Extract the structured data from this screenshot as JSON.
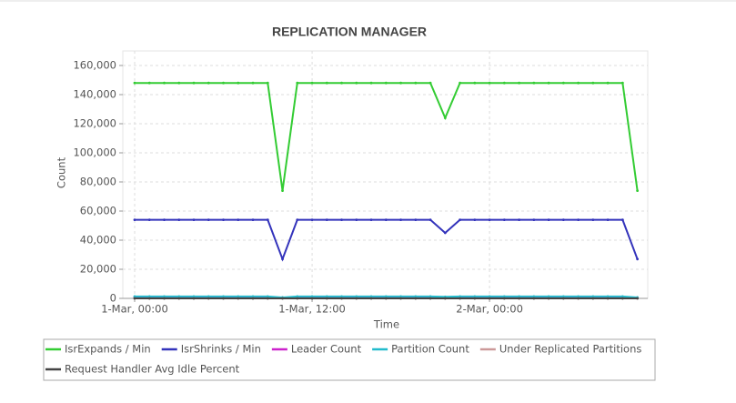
{
  "chart_data": {
    "type": "line",
    "title": "REPLICATION MANAGER",
    "x_label": "Time",
    "y_label": "Count",
    "x": [
      0,
      1,
      2,
      3,
      4,
      5,
      6,
      7,
      8,
      9,
      10,
      11,
      12,
      13,
      14,
      15,
      16,
      17,
      18,
      19,
      20,
      21,
      22,
      23,
      24,
      25,
      26,
      27,
      28,
      29,
      30,
      31,
      32,
      33,
      34
    ],
    "xlim": [
      -0.8,
      34.7
    ],
    "xticks": [
      {
        "value": 0,
        "label": "1-Mar, 00:00"
      },
      {
        "value": 12,
        "label": "1-Mar, 12:00"
      },
      {
        "value": 24,
        "label": "2-Mar, 00:00"
      }
    ],
    "ylim": [
      0,
      170000
    ],
    "yticks": [
      {
        "value": 0,
        "label": "0"
      },
      {
        "value": 20000,
        "label": "20,000"
      },
      {
        "value": 40000,
        "label": "40,000"
      },
      {
        "value": 60000,
        "label": "60,000"
      },
      {
        "value": 80000,
        "label": "80,000"
      },
      {
        "value": 100000,
        "label": "100,000"
      },
      {
        "value": 120000,
        "label": "120,000"
      },
      {
        "value": 140000,
        "label": "140,000"
      },
      {
        "value": 160000,
        "label": "160,000"
      }
    ],
    "grid": true,
    "series": [
      {
        "name": "IsrExpands / Min",
        "color": "#33cc33",
        "values": [
          148000,
          148000,
          148000,
          148000,
          148000,
          148000,
          148000,
          148000,
          148000,
          148000,
          74000,
          148000,
          148000,
          148000,
          148000,
          148000,
          148000,
          148000,
          148000,
          148000,
          148000,
          124000,
          148000,
          148000,
          148000,
          148000,
          148000,
          148000,
          148000,
          148000,
          148000,
          148000,
          148000,
          148000,
          74000
        ]
      },
      {
        "name": "IsrShrinks / Min",
        "color": "#3333bb",
        "values": [
          54000,
          54000,
          54000,
          54000,
          54000,
          54000,
          54000,
          54000,
          54000,
          54000,
          27000,
          54000,
          54000,
          54000,
          54000,
          54000,
          54000,
          54000,
          54000,
          54000,
          54000,
          45000,
          54000,
          54000,
          54000,
          54000,
          54000,
          54000,
          54000,
          54000,
          54000,
          54000,
          54000,
          54000,
          27000
        ]
      },
      {
        "name": "Leader Count",
        "color": "#cc22cc",
        "values": [
          700,
          700,
          700,
          700,
          700,
          700,
          700,
          700,
          700,
          700,
          350,
          700,
          700,
          700,
          700,
          700,
          700,
          700,
          700,
          700,
          700,
          600,
          700,
          700,
          700,
          700,
          700,
          700,
          700,
          700,
          700,
          700,
          700,
          700,
          350
        ]
      },
      {
        "name": "Partition Count",
        "color": "#22bbcc",
        "values": [
          1300,
          1300,
          1300,
          1300,
          1300,
          1300,
          1300,
          1300,
          1300,
          1300,
          650,
          1300,
          1300,
          1300,
          1300,
          1300,
          1300,
          1300,
          1300,
          1300,
          1300,
          1100,
          1300,
          1300,
          1300,
          1300,
          1300,
          1300,
          1300,
          1300,
          1300,
          1300,
          1300,
          1300,
          650
        ]
      },
      {
        "name": "Under Replicated Partitions",
        "color": "#cc9999",
        "values": [
          0,
          0,
          0,
          0,
          0,
          0,
          0,
          0,
          0,
          0,
          0,
          0,
          0,
          0,
          0,
          0,
          0,
          0,
          0,
          0,
          0,
          0,
          0,
          0,
          0,
          0,
          0,
          0,
          0,
          0,
          0,
          0,
          0,
          0,
          0
        ]
      },
      {
        "name": "Request Handler Avg Idle Percent",
        "color": "#444444",
        "values": [
          1,
          1,
          1,
          1,
          1,
          1,
          1,
          1,
          1,
          1,
          1,
          1,
          1,
          1,
          1,
          1,
          1,
          1,
          1,
          1,
          1,
          1,
          1,
          1,
          1,
          1,
          1,
          1,
          1,
          1,
          1,
          1,
          1,
          1,
          1
        ]
      }
    ]
  }
}
